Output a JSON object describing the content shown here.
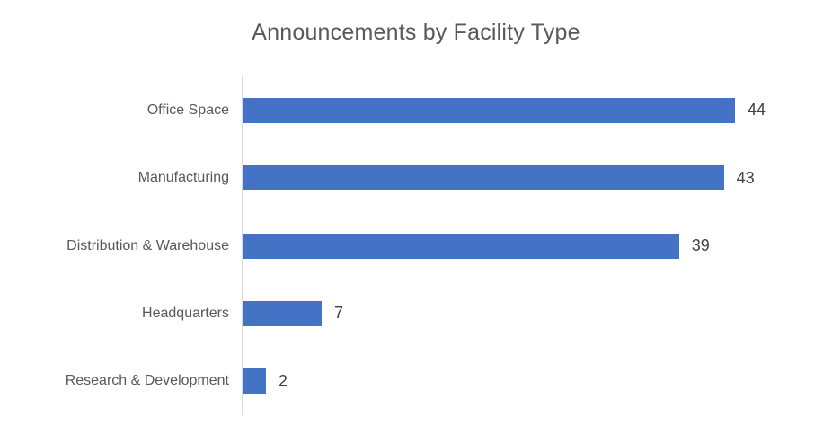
{
  "chart_data": {
    "type": "bar",
    "orientation": "horizontal",
    "title": "Announcements by Facility Type",
    "categories": [
      "Office Space",
      "Manufacturing",
      "Distribution & Warehouse",
      "Headquarters",
      "Research & Development"
    ],
    "values": [
      44,
      43,
      39,
      7,
      2
    ],
    "xlabel": "",
    "ylabel": "",
    "xlim": [
      0,
      44
    ],
    "grid": false,
    "legend_position": "none",
    "data_labels": true,
    "colors": {
      "bar": "#4472C4",
      "axis_line": "#D9D9D9",
      "title_text": "#595959",
      "category_text": "#595959",
      "value_text": "#404040",
      "background": "#FFFFFF"
    }
  }
}
